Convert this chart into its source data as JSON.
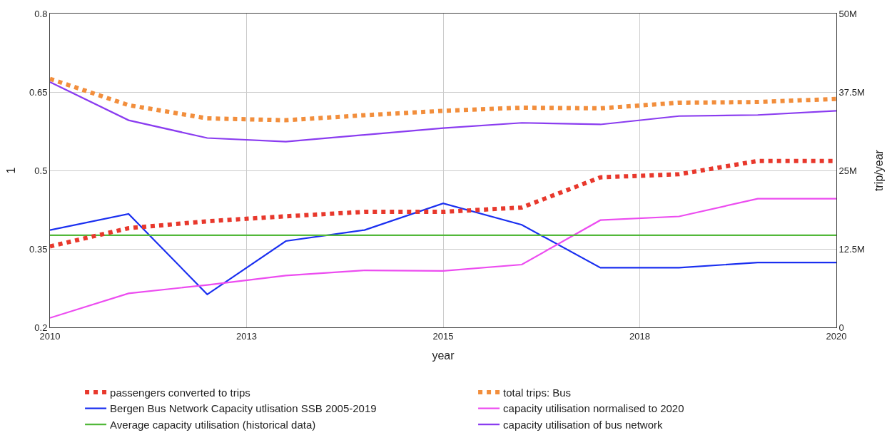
{
  "chart_data": {
    "type": "line",
    "xlabel": "year",
    "ylabel": "1",
    "y2label": "trip/year",
    "x": [
      2010,
      2011,
      2012,
      2013,
      2014,
      2015,
      2016,
      2017,
      2018,
      2019,
      2020
    ],
    "xlim": [
      2010,
      2020
    ],
    "xticks": [
      2010,
      {
        "value": 2012.5,
        "label": "2013"
      },
      2015,
      {
        "value": 2017.5,
        "label": "2018"
      },
      2020
    ],
    "ylim": [
      0.2,
      0.8
    ],
    "yticks": [
      0.2,
      0.35,
      0.5,
      0.65,
      0.8
    ],
    "y2lim": [
      0,
      50000000
    ],
    "y2ticks": [
      {
        "value": 0,
        "label": "0"
      },
      {
        "value": 12500000,
        "label": "12.5M"
      },
      {
        "value": 25000000,
        "label": "25M"
      },
      {
        "value": 37500000,
        "label": "37.5M"
      },
      {
        "value": 50000000,
        "label": "50M"
      }
    ],
    "grid": true,
    "legend": "bottom",
    "series": [
      {
        "name": "passengers converted to trips",
        "color": "#e8382c",
        "line_style": "dotted",
        "axis": "y2",
        "values": [
          12900000,
          15800000,
          16900000,
          17700000,
          18400000,
          18400000,
          19100000,
          23900000,
          24400000,
          26500000,
          26500000
        ]
      },
      {
        "name": "total trips: Bus",
        "color": "#f28e3c",
        "line_style": "dotted",
        "axis": "y2",
        "values": [
          39600000,
          35400000,
          33300000,
          33000000,
          33800000,
          34500000,
          35000000,
          34900000,
          35800000,
          35900000,
          36400000
        ]
      },
      {
        "name": "Bergen Bus Network Capacity utlisation SSB 2005-2019",
        "color": "#1a2ff0",
        "line_style": "solid",
        "values": [
          0.386,
          0.417,
          0.263,
          0.365,
          0.386,
          0.437,
          0.396,
          0.314,
          0.314,
          0.324,
          0.324
        ]
      },
      {
        "name": "capacity utilisation normalised to 2020",
        "color": "#ec4cf0",
        "line_style": "solid",
        "values": [
          0.218,
          0.265,
          0.281,
          0.299,
          0.309,
          0.308,
          0.32,
          0.405,
          0.412,
          0.446,
          0.446
        ]
      },
      {
        "name": "Average capacity utilisation (historical data)",
        "color": "#52b83a",
        "line_style": "solid",
        "values": [
          0.376,
          0.376,
          0.376,
          0.376,
          0.376,
          0.376,
          0.376,
          0.376,
          0.376,
          0.376,
          0.376
        ]
      },
      {
        "name": "capacity utilisation of bus network",
        "color": "#8a3cf0",
        "line_style": "solid",
        "values": [
          0.669,
          0.596,
          0.562,
          0.555,
          0.568,
          0.581,
          0.591,
          0.588,
          0.604,
          0.606,
          0.614
        ]
      }
    ]
  }
}
